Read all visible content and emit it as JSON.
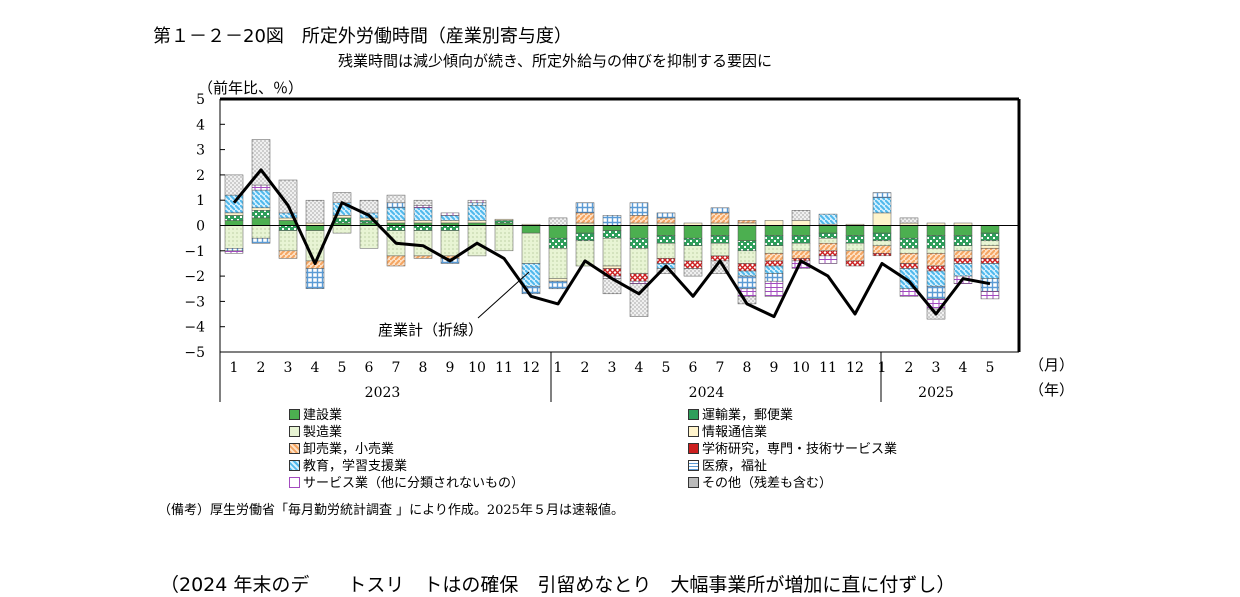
{
  "title": "第１－２－20図　所定外労働時間（産業別寄与度）",
  "subtitle": "残業時間は減少傾向が続き、所定外給与の伸びを抑制する要因に",
  "unit": "（前年比、％）",
  "line_annotation": "産業計（折線）",
  "month_axis_unit": "（月）",
  "year_axis_unit": "（年）",
  "source_note": "（備考）厚生労働省「毎月勤労統計調査 」により作成。2025年５月は速報値。",
  "bottom_text": "（2024 年末のデ　　トスリ　トはの確保　引留めなとり　大幅事業所が増加に直に付ずし）",
  "colors": {
    "construction": "#4caf50",
    "transport": "#2e9e5b",
    "manufacturing": "#e8f4d4",
    "information": "#fff4cc",
    "wholesale_retail": "#f4a460",
    "academic": "#cc1f1f",
    "education": "#4fb8ec",
    "medical": "#5b9bd5",
    "services": "#a34bbf",
    "other": "#bbbbbb",
    "line": "#000000"
  },
  "chart_data": {
    "type": "bar",
    "stacked": true,
    "ylim": [
      -5,
      5
    ],
    "yticks": [
      "5",
      "4",
      "3",
      "2",
      "1",
      "0",
      "−1",
      "−2",
      "−3",
      "−4",
      "−5"
    ],
    "categories": [
      "1",
      "2",
      "3",
      "4",
      "5",
      "6",
      "7",
      "8",
      "9",
      "10",
      "11",
      "12",
      "1",
      "2",
      "3",
      "4",
      "5",
      "6",
      "7",
      "8",
      "9",
      "10",
      "11",
      "12",
      "1",
      "2",
      "3",
      "4",
      "5"
    ],
    "year_labels": [
      {
        "label": "2023",
        "start": 0,
        "end": 11
      },
      {
        "label": "2024",
        "start": 12,
        "end": 23
      },
      {
        "label": "2025",
        "start": 24,
        "end": 28
      }
    ],
    "series": [
      {
        "key": "construction",
        "name": "建設業",
        "color_key": "construction",
        "values": [
          0.2,
          0.3,
          0.2,
          -0.2,
          0.1,
          0.1,
          0.1,
          0.1,
          0.1,
          0.1,
          0.1,
          -0.3,
          -0.5,
          -0.3,
          -0.2,
          -0.5,
          -0.4,
          -0.5,
          -0.4,
          -0.6,
          -0.4,
          -0.4,
          -0.3,
          -0.4,
          -0.3,
          -0.5,
          -0.4,
          -0.4,
          -0.3
        ]
      },
      {
        "key": "transport",
        "name": "運輸業，郵便業",
        "color_key": "transport",
        "values": [
          0.2,
          0.3,
          -0.2,
          0.0,
          0.2,
          0.1,
          -0.2,
          -0.2,
          -0.2,
          0.0,
          0.1,
          0.0,
          -0.4,
          -0.3,
          -0.3,
          -0.4,
          -0.3,
          -0.3,
          -0.3,
          -0.4,
          -0.4,
          -0.3,
          -0.2,
          -0.3,
          -0.3,
          -0.4,
          -0.5,
          -0.4,
          -0.3
        ]
      },
      {
        "key": "manufacturing",
        "name": "製造業",
        "color_key": "manufacturing",
        "values": [
          -0.9,
          -0.5,
          -0.8,
          -1.2,
          -0.3,
          -0.9,
          -1.0,
          -1.0,
          -1.0,
          -1.2,
          -1.0,
          -1.2,
          -1.2,
          -1.0,
          -1.1,
          -1.0,
          -0.6,
          -0.6,
          -0.5,
          -0.5,
          -0.3,
          -0.3,
          -0.2,
          -0.3,
          -0.2,
          -0.2,
          -0.2,
          -0.2,
          -0.2
        ]
      },
      {
        "key": "information",
        "name": "情報通信業",
        "color_key": "information",
        "values": [
          0.1,
          0.1,
          0.1,
          0.1,
          0.1,
          0.1,
          0.1,
          0.1,
          0.1,
          0.1,
          0.05,
          0.05,
          -0.1,
          0.1,
          -0.1,
          0.1,
          0.1,
          0.1,
          0.1,
          0.1,
          0.2,
          0.2,
          0.05,
          0.05,
          0.5,
          0.1,
          0.1,
          0.1,
          -0.1
        ]
      },
      {
        "key": "wholesale_retail",
        "name": "卸売業，小売業",
        "color_key": "wholesale_retail",
        "values": [
          0.0,
          0.0,
          -0.3,
          -0.3,
          0.0,
          0.0,
          -0.4,
          -0.1,
          -0.1,
          0.0,
          0.0,
          0.0,
          0.0,
          0.4,
          0.0,
          0.3,
          0.2,
          0.0,
          0.4,
          0.1,
          -0.3,
          -0.3,
          -0.3,
          -0.4,
          -0.3,
          -0.4,
          -0.5,
          -0.3,
          -0.4
        ]
      },
      {
        "key": "academic",
        "name": "学術研究，専門・技術サービス業",
        "color_key": "academic",
        "values": [
          0.0,
          0.0,
          0.0,
          0.0,
          0.0,
          0.0,
          0.0,
          0.0,
          0.0,
          0.0,
          0.0,
          0.0,
          0.0,
          0.0,
          -0.3,
          -0.3,
          -0.2,
          -0.3,
          -0.2,
          -0.3,
          -0.2,
          -0.1,
          -0.2,
          -0.2,
          -0.1,
          -0.2,
          -0.2,
          -0.2,
          -0.2
        ]
      },
      {
        "key": "education",
        "name": "教育，学習支援業",
        "color_key": "education",
        "values": [
          0.7,
          0.7,
          0.2,
          0.0,
          0.5,
          0.2,
          0.5,
          0.5,
          0.2,
          0.6,
          0.0,
          -0.9,
          0.0,
          0.0,
          0.0,
          0.0,
          -0.2,
          0.0,
          0.0,
          -0.2,
          -0.3,
          0.0,
          0.4,
          0.0,
          0.6,
          -0.8,
          -0.6,
          -0.5,
          -0.6
        ]
      },
      {
        "key": "medical",
        "name": "医療，福祉",
        "color_key": "medical",
        "values": [
          -0.1,
          -0.2,
          0.0,
          -0.8,
          0.0,
          0.0,
          0.2,
          0.0,
          -0.2,
          0.1,
          0.0,
          -0.3,
          -0.3,
          0.4,
          0.4,
          0.5,
          0.2,
          0.0,
          0.2,
          -0.5,
          -0.3,
          0.0,
          0.0,
          0.0,
          0.2,
          0.0,
          -0.5,
          0.0,
          -0.5
        ]
      },
      {
        "key": "services",
        "name": "サービス業（他に分類されないもの）",
        "color_key": "services",
        "values": [
          -0.1,
          0.2,
          0.0,
          0.0,
          0.0,
          0.0,
          0.0,
          0.1,
          0.1,
          0.1,
          0.0,
          0.0,
          0.0,
          0.0,
          -0.1,
          -0.1,
          0.0,
          0.0,
          0.0,
          -0.3,
          -0.6,
          -0.3,
          -0.3,
          0.0,
          0.0,
          -0.3,
          -0.4,
          -0.3,
          -0.3
        ]
      },
      {
        "key": "other",
        "name": "その他（残差も含む）",
        "color_key": "other",
        "values": [
          0.8,
          1.8,
          1.3,
          0.9,
          0.4,
          0.5,
          0.3,
          0.2,
          0.0,
          0.0,
          0.0,
          0.0,
          0.3,
          0.0,
          -0.6,
          -1.3,
          -0.2,
          -0.3,
          -0.5,
          -0.3,
          0.0,
          0.4,
          0.0,
          0.0,
          0.0,
          0.2,
          -0.4,
          0.0,
          0.0
        ]
      }
    ],
    "line": {
      "name": "産業計（折線）",
      "values": [
        0.9,
        2.2,
        0.8,
        -1.5,
        0.9,
        0.4,
        -0.7,
        -0.8,
        -1.4,
        -0.7,
        -1.3,
        -2.8,
        -3.1,
        -1.4,
        -2.1,
        -2.7,
        -1.6,
        -2.8,
        -1.4,
        -3.1,
        -3.6,
        -1.4,
        -2.0,
        -3.5,
        -1.5,
        -2.2,
        -3.5,
        -2.1,
        -2.3
      ]
    }
  }
}
